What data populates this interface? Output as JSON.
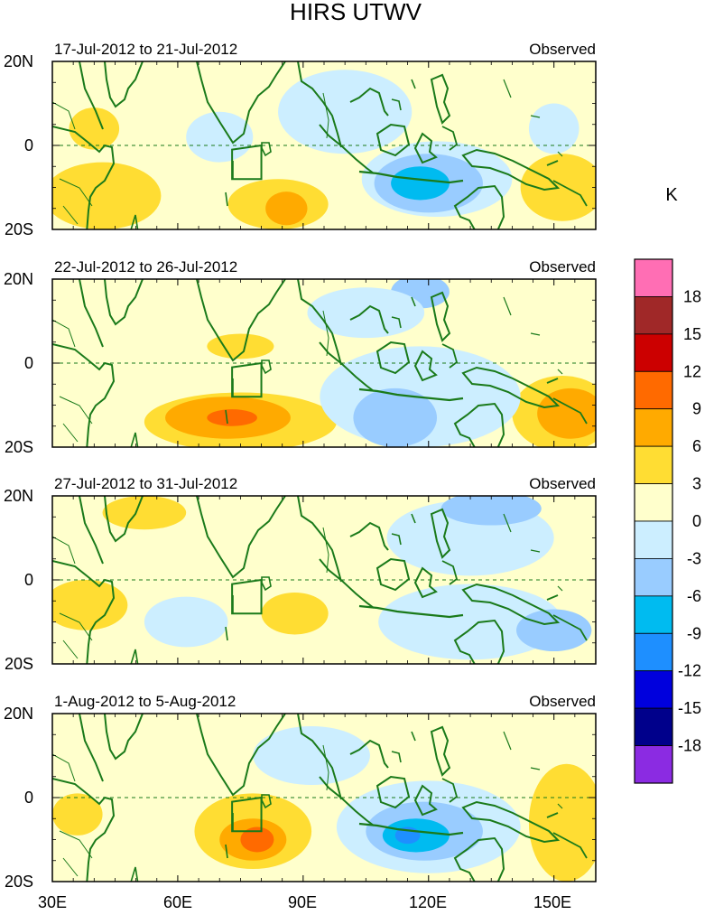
{
  "chart_data": {
    "type": "heatmap",
    "title": "HIRS UTWV",
    "units": "K",
    "x_ticks": [
      "30E",
      "60E",
      "90E",
      "120E",
      "150E"
    ],
    "y_ticks": [
      "20N",
      "0",
      "20S"
    ],
    "xlim": [
      30,
      160
    ],
    "ylim": [
      -20,
      20
    ],
    "colorbar": {
      "labels": [
        "18",
        "15",
        "12",
        "9",
        "6",
        "3",
        "0",
        "-3",
        "-6",
        "-9",
        "-12",
        "-15",
        "-18"
      ],
      "colors": [
        "#ff6eb4",
        "#a02828",
        "#cc0000",
        "#ff6a00",
        "#ffaa00",
        "#ffdd33",
        "#ffffcc",
        "#cceeff",
        "#99ccff",
        "#00bbf0",
        "#1e8fff",
        "#0000dd",
        "#00008b",
        "#8b2be2"
      ]
    },
    "panels": [
      {
        "period": "17-Jul-2012 to 21-Jul-2012",
        "label": "Observed",
        "anomalies": [
          {
            "lon": 40,
            "lat": 4,
            "rx": 6,
            "ry": 5,
            "level": 3
          },
          {
            "lon": 42,
            "lat": -12,
            "rx": 14,
            "ry": 8,
            "level": 3
          },
          {
            "lon": 84,
            "lat": -14,
            "rx": 12,
            "ry": 6,
            "level": 3
          },
          {
            "lon": 86,
            "lat": -15,
            "rx": 5,
            "ry": 4,
            "level": 6
          },
          {
            "lon": 152,
            "lat": -10,
            "rx": 10,
            "ry": 8,
            "level": 3
          },
          {
            "lon": 150,
            "lat": 4,
            "rx": 6,
            "ry": 6,
            "level": -3
          },
          {
            "lon": 100,
            "lat": 8,
            "rx": 16,
            "ry": 10,
            "level": -3
          },
          {
            "lon": 122,
            "lat": -8,
            "rx": 18,
            "ry": 9,
            "level": -3
          },
          {
            "lon": 120,
            "lat": -9,
            "rx": 13,
            "ry": 7,
            "level": -6
          },
          {
            "lon": 118,
            "lat": -9,
            "rx": 7,
            "ry": 4,
            "level": -9
          },
          {
            "lon": 70,
            "lat": 2,
            "rx": 8,
            "ry": 6,
            "level": -3
          }
        ]
      },
      {
        "period": "22-Jul-2012 to 26-Jul-2012",
        "label": "Observed",
        "anomalies": [
          {
            "lon": 75,
            "lat": -14,
            "rx": 23,
            "ry": 7,
            "level": 3
          },
          {
            "lon": 72,
            "lat": -13,
            "rx": 15,
            "ry": 5,
            "level": 6
          },
          {
            "lon": 73,
            "lat": -13,
            "rx": 6,
            "ry": 2,
            "level": 9
          },
          {
            "lon": 152,
            "lat": -12,
            "rx": 12,
            "ry": 9,
            "level": 3
          },
          {
            "lon": 154,
            "lat": -12,
            "rx": 8,
            "ry": 6,
            "level": 6
          },
          {
            "lon": 75,
            "lat": 4,
            "rx": 8,
            "ry": 3,
            "level": 3
          },
          {
            "lon": 118,
            "lat": -8,
            "rx": 24,
            "ry": 12,
            "level": -3
          },
          {
            "lon": 112,
            "lat": -13,
            "rx": 10,
            "ry": 7,
            "level": -6
          },
          {
            "lon": 118,
            "lat": 17,
            "rx": 7,
            "ry": 4,
            "level": -6
          },
          {
            "lon": 105,
            "lat": 12,
            "rx": 14,
            "ry": 6,
            "level": -3
          }
        ]
      },
      {
        "period": "27-Jul-2012 to 31-Jul-2012",
        "label": "Observed",
        "anomalies": [
          {
            "lon": 38,
            "lat": -6,
            "rx": 10,
            "ry": 6,
            "level": 3
          },
          {
            "lon": 88,
            "lat": -8,
            "rx": 8,
            "ry": 5,
            "level": 3
          },
          {
            "lon": 130,
            "lat": 10,
            "rx": 20,
            "ry": 9,
            "level": -3
          },
          {
            "lon": 135,
            "lat": 17,
            "rx": 12,
            "ry": 4,
            "level": -6
          },
          {
            "lon": 130,
            "lat": -10,
            "rx": 22,
            "ry": 9,
            "level": -3
          },
          {
            "lon": 150,
            "lat": -12,
            "rx": 9,
            "ry": 5,
            "level": -6
          },
          {
            "lon": 62,
            "lat": -10,
            "rx": 10,
            "ry": 6,
            "level": -3
          },
          {
            "lon": 52,
            "lat": 16,
            "rx": 10,
            "ry": 4,
            "level": 3
          }
        ]
      },
      {
        "period": "1-Aug-2012 to 5-Aug-2012",
        "label": "Observed",
        "anomalies": [
          {
            "lon": 78,
            "lat": -8,
            "rx": 14,
            "ry": 9,
            "level": 3
          },
          {
            "lon": 78,
            "lat": -10,
            "rx": 8,
            "ry": 5,
            "level": 6
          },
          {
            "lon": 79,
            "lat": -10,
            "rx": 4,
            "ry": 3,
            "level": 9
          },
          {
            "lon": 36,
            "lat": -4,
            "rx": 6,
            "ry": 5,
            "level": 3
          },
          {
            "lon": 153,
            "lat": -6,
            "rx": 9,
            "ry": 14,
            "level": 3
          },
          {
            "lon": 120,
            "lat": -7,
            "rx": 22,
            "ry": 11,
            "level": -3
          },
          {
            "lon": 119,
            "lat": -8,
            "rx": 14,
            "ry": 7,
            "level": -6
          },
          {
            "lon": 117,
            "lat": -9,
            "rx": 8,
            "ry": 4,
            "level": -9
          },
          {
            "lon": 115,
            "lat": -9,
            "rx": 3,
            "ry": 2,
            "level": -12
          },
          {
            "lon": 92,
            "lat": 10,
            "rx": 14,
            "ry": 7,
            "level": -3
          }
        ]
      }
    ]
  }
}
